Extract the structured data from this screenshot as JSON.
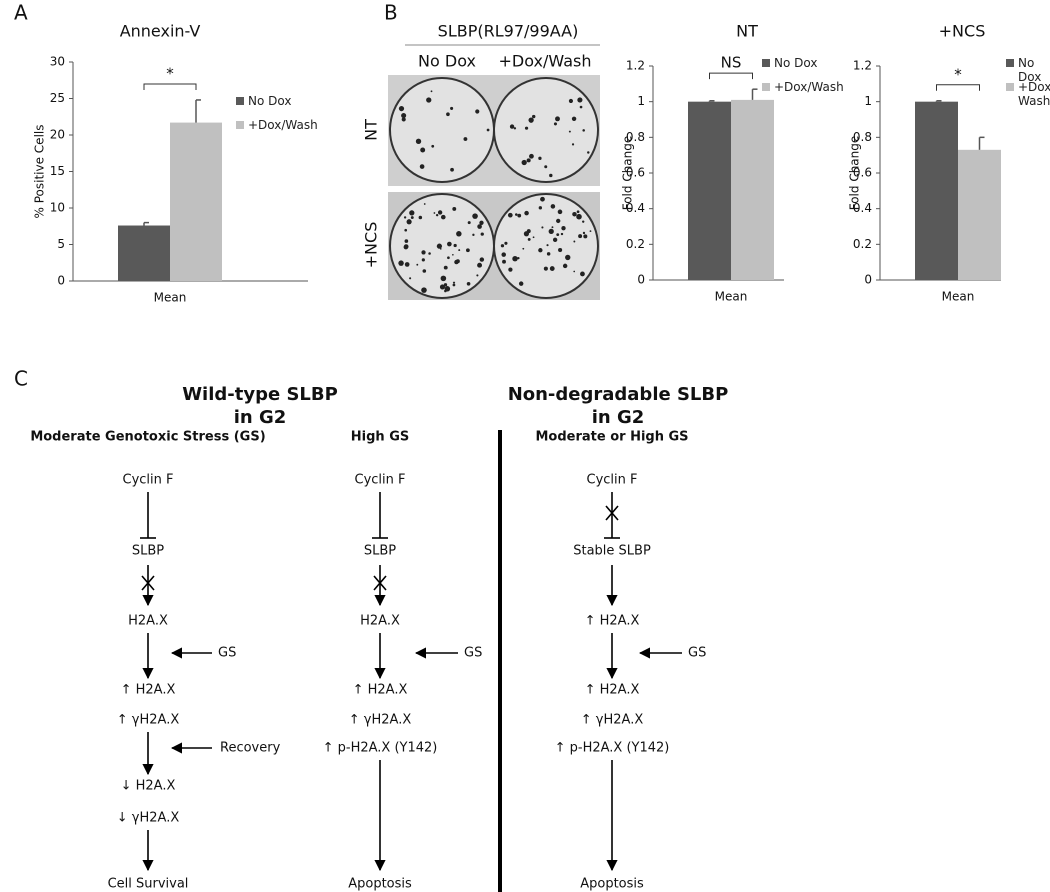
{
  "panel_labels": [
    "A",
    "B",
    "C"
  ],
  "chart_data": [
    {
      "type": "bar",
      "title": "Annexin-V",
      "ylabel": "% Positive Cells",
      "categories": [
        "Mean"
      ],
      "series": [
        {
          "name": "No Dox",
          "color": "#595959",
          "values": [
            7.6
          ],
          "errors": [
            0.4
          ]
        },
        {
          "name": "+Dox/Wash",
          "color": "#c0c0c0",
          "values": [
            21.7
          ],
          "errors": [
            3.1
          ]
        }
      ],
      "ylim": [
        0,
        30
      ],
      "yticks": [
        0,
        5,
        10,
        15,
        20,
        25,
        30
      ],
      "annotation": "*"
    },
    {
      "type": "bar",
      "title": "NT",
      "ylabel": "Fold Change",
      "categories": [
        "Mean"
      ],
      "series": [
        {
          "name": "No Dox",
          "color": "#595959",
          "values": [
            1.0
          ],
          "errors": [
            0.005
          ]
        },
        {
          "name": "+Dox/Wash",
          "color": "#c0c0c0",
          "values": [
            1.01
          ],
          "errors": [
            0.06
          ]
        }
      ],
      "ylim": [
        0,
        1.2
      ],
      "yticks": [
        0,
        0.2,
        0.4,
        0.6,
        0.8,
        1,
        1.2
      ],
      "annotation": "NS"
    },
    {
      "type": "bar",
      "title": "+NCS",
      "ylabel": "Fold Change",
      "categories": [
        "Mean"
      ],
      "series": [
        {
          "name": "No Dox",
          "color": "#595959",
          "values": [
            1.0
          ],
          "errors": [
            0.005
          ]
        },
        {
          "name": "+Dox/ Wash",
          "color": "#c0c0c0",
          "values": [
            0.73
          ],
          "errors": [
            0.07
          ]
        }
      ],
      "ylim": [
        0,
        1.2
      ],
      "yticks": [
        0,
        0.2,
        0.4,
        0.6,
        0.8,
        1,
        1.2
      ],
      "annotation": "*"
    }
  ],
  "images": {
    "title": "SLBP(RL97/99AA)",
    "columns": [
      "No Dox",
      "+Dox/Wash"
    ],
    "rows": [
      "NT",
      "+NCS"
    ]
  },
  "diagram": {
    "titles": [
      [
        "Wild-type SLBP",
        "in G2"
      ],
      [
        "Non-degradable SLBP",
        "in G2"
      ]
    ],
    "columns": [
      {
        "header": "Moderate Genotoxic Stress (GS)",
        "nodes": [
          "Cyclin F",
          "SLBP",
          "H2A.X",
          "↑ H2A.X",
          "↑ γH2A.X",
          "↓ H2A.X",
          "↓ γH2A.X",
          "Cell Survival"
        ],
        "inputs": [
          "GS",
          "Recovery"
        ]
      },
      {
        "header": "High GS",
        "nodes": [
          "Cyclin F",
          "SLBP",
          "H2A.X",
          "↑ H2A.X",
          "↑ γH2A.X",
          "↑ p-H2A.X (Y142)",
          "Apoptosis"
        ],
        "inputs": [
          "GS"
        ]
      },
      {
        "header": "Moderate or High GS",
        "nodes": [
          "Cyclin F",
          "Stable SLBP",
          "↑ H2A.X",
          "↑ H2A.X",
          "↑ γH2A.X",
          "↑ p-H2A.X (Y142)",
          "Apoptosis"
        ],
        "inputs": [
          "GS"
        ]
      }
    ]
  }
}
